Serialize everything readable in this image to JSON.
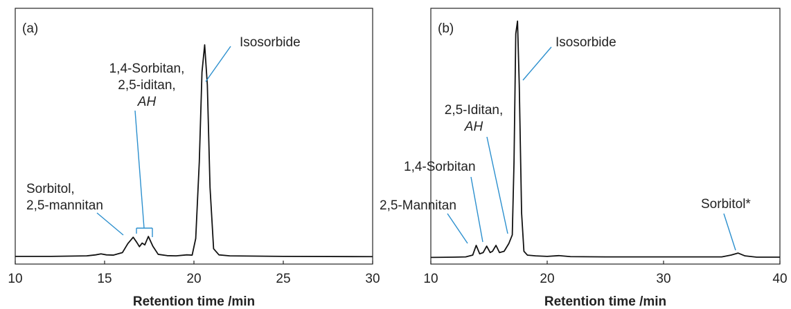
{
  "chart_data": [
    {
      "type": "line",
      "title": "(a)",
      "xlabel": "Retention time /min",
      "color": "#111111",
      "leader_color": "#2b8fce",
      "xlim": [
        10,
        30
      ],
      "xticks": [
        10,
        15,
        20,
        25,
        30
      ],
      "ylim": [
        0,
        100
      ],
      "x": [
        10,
        12,
        14,
        14.5,
        14.8,
        15.1,
        15.5,
        16,
        16.3,
        16.6,
        16.8,
        16.95,
        17.1,
        17.25,
        17.45,
        17.7,
        18,
        18.5,
        19,
        19.6,
        19.9,
        20.1,
        20.3,
        20.45,
        20.6,
        20.75,
        20.9,
        21.1,
        21.4,
        22,
        25,
        30
      ],
      "values": [
        3,
        3,
        3.2,
        3.6,
        4,
        3.6,
        3.5,
        4.5,
        8,
        10.5,
        8.5,
        6.8,
        8.2,
        7.5,
        10.8,
        7,
        3.8,
        3.3,
        3.2,
        3.6,
        3.5,
        10,
        40,
        75,
        85.7,
        70,
        30,
        6,
        3.6,
        3.2,
        3,
        2.9
      ],
      "annotations": [
        {
          "lines": [
            "Isosorbide"
          ]
        },
        {
          "lines": [
            "1,4-Sorbitan,",
            "2,5-iditan,",
            "AH"
          ],
          "italic_lines": [
            2
          ]
        },
        {
          "lines": [
            "Sorbitol,",
            "2,5-mannitan"
          ]
        }
      ]
    },
    {
      "type": "line",
      "title": "(b)",
      "xlabel": "Retention time /min",
      "color": "#111111",
      "leader_color": "#2b8fce",
      "xlim": [
        10,
        40
      ],
      "xticks": [
        10,
        20,
        30,
        40
      ],
      "ylim": [
        0,
        100
      ],
      "x": [
        10,
        12,
        13,
        13.6,
        13.9,
        14.2,
        14.5,
        14.8,
        15.1,
        15.3,
        15.6,
        15.9,
        16.3,
        16.7,
        17.0,
        17.15,
        17.3,
        17.45,
        17.6,
        17.8,
        18.0,
        18.3,
        19,
        20,
        21,
        22,
        25,
        30,
        35,
        35.8,
        36.4,
        37,
        38,
        40
      ],
      "values": [
        2.6,
        2.7,
        2.8,
        3.5,
        7.3,
        4,
        4.5,
        7,
        4.5,
        5,
        7.3,
        4.5,
        5,
        8,
        11.4,
        40,
        90,
        95,
        70,
        20,
        5,
        3.5,
        3.2,
        3,
        3.3,
        2.9,
        2.8,
        2.8,
        2.8,
        3.5,
        4.3,
        3.2,
        2.7,
        2.7
      ],
      "annotations": [
        {
          "lines": [
            "Isosorbide"
          ]
        },
        {
          "lines": [
            "2,5-Iditan,",
            "AH"
          ],
          "italic_lines": [
            1
          ]
        },
        {
          "lines": [
            "1,4-Sorbitan"
          ]
        },
        {
          "lines": [
            "2,5-Mannitan"
          ]
        },
        {
          "lines": [
            "Sorbitol*"
          ]
        }
      ]
    }
  ]
}
